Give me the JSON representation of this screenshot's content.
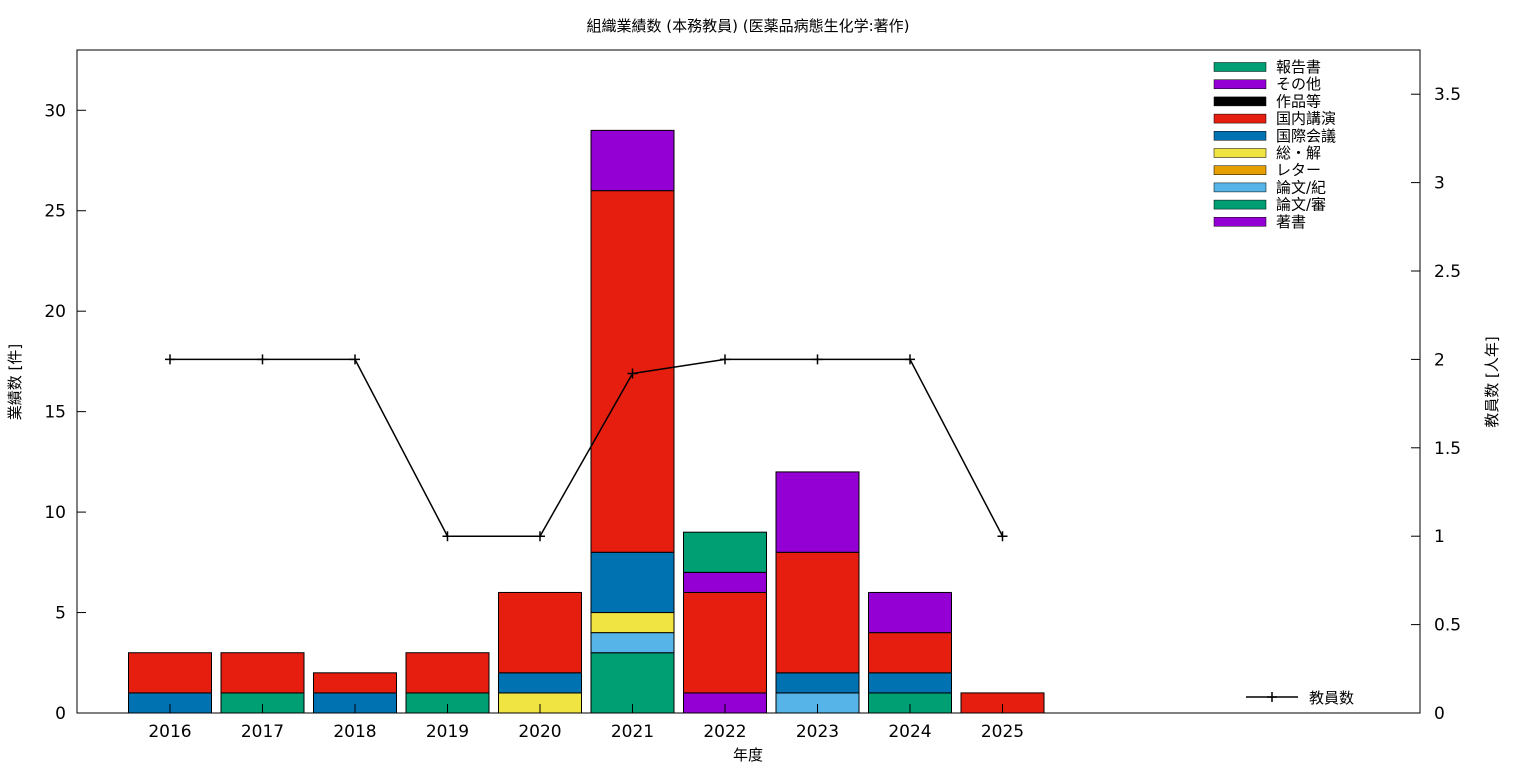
{
  "chart_data": {
    "type": "bar",
    "stacked": true,
    "title": "組織業績数 (本務教員) (医薬品病態生化学:著作)",
    "xlabel": "年度",
    "ylabel": "業績数 [件]",
    "y2label": "教員数 [人年]",
    "categories": [
      "2016",
      "2017",
      "2018",
      "2019",
      "2020",
      "2021",
      "2022",
      "2023",
      "2024",
      "2025"
    ],
    "ylim": [
      0,
      33
    ],
    "yticks": [
      0,
      5,
      10,
      15,
      20,
      25,
      30
    ],
    "y2lim": [
      0,
      3.75
    ],
    "y2ticks": [
      0,
      0.5,
      1,
      1.5,
      2,
      2.5,
      3,
      3.5
    ],
    "grid": false,
    "legend_position": "top-right",
    "series": [
      {
        "name": "著書",
        "color": "#9400d3",
        "values": [
          0,
          0,
          0,
          0,
          0,
          0,
          1,
          0,
          0,
          0
        ]
      },
      {
        "name": "論文/審",
        "color": "#009e73",
        "values": [
          0,
          1,
          0,
          1,
          0,
          3,
          0,
          0,
          1,
          0
        ]
      },
      {
        "name": "論文/紀",
        "color": "#56b4e9",
        "values": [
          0,
          0,
          0,
          0,
          0,
          1,
          0,
          1,
          0,
          0
        ]
      },
      {
        "name": "レター",
        "color": "#e69f00",
        "values": [
          0,
          0,
          0,
          0,
          0,
          0,
          0,
          0,
          0,
          0
        ]
      },
      {
        "name": "総・解",
        "color": "#f0e442",
        "values": [
          0,
          0,
          0,
          0,
          1,
          1,
          0,
          0,
          0,
          0
        ]
      },
      {
        "name": "国際会議",
        "color": "#0072b2",
        "values": [
          1,
          0,
          1,
          0,
          1,
          3,
          0,
          1,
          1,
          0
        ]
      },
      {
        "name": "国内講演",
        "color": "#e51e10",
        "values": [
          2,
          2,
          1,
          2,
          4,
          18,
          5,
          6,
          2,
          1
        ]
      },
      {
        "name": "作品等",
        "color": "#000000",
        "values": [
          0,
          0,
          0,
          0,
          0,
          0,
          0,
          0,
          0,
          0
        ]
      },
      {
        "name": "その他",
        "color": "#9400d3",
        "values": [
          0,
          0,
          0,
          0,
          0,
          3,
          1,
          4,
          2,
          0
        ]
      },
      {
        "name": "報告書",
        "color": "#009e73",
        "values": [
          0,
          0,
          0,
          0,
          0,
          0,
          2,
          0,
          0,
          0
        ]
      }
    ],
    "legend_order": [
      "報告書",
      "その他",
      "作品等",
      "国内講演",
      "国際会議",
      "総・解",
      "レター",
      "論文/紀",
      "論文/審",
      "著書"
    ],
    "line_series": {
      "name": "教員数",
      "axis": "y2",
      "color": "#000000",
      "values": [
        2,
        2,
        2,
        1,
        1,
        1.92,
        2,
        2,
        2,
        1
      ]
    }
  }
}
